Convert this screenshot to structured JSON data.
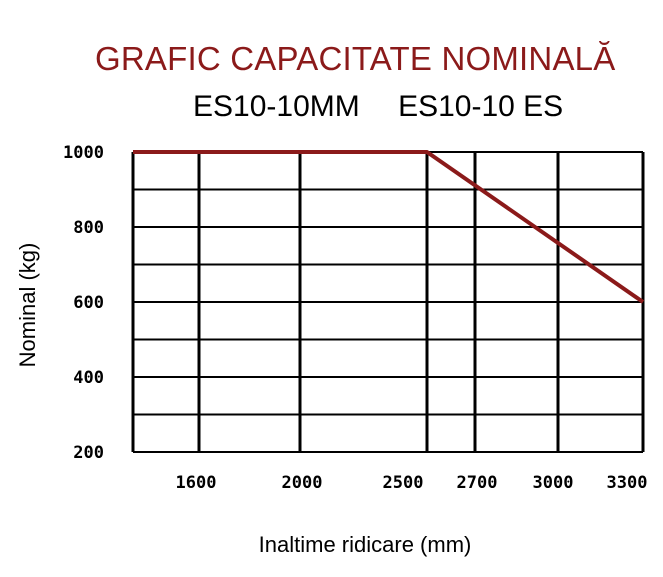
{
  "chart_data": {
    "type": "line",
    "title": "GRAFIC CAPACITATE NOMINALĂ",
    "subtitle": [
      "ES10-10MM",
      "ES10-10 ES"
    ],
    "xlabel": "Inaltime ridicare (mm)",
    "ylabel": "Nominal (kg)",
    "categories": [
      "1600",
      "2000",
      "2500",
      "2700",
      "3000",
      "3300"
    ],
    "y_ticks": [
      "1000",
      "800",
      "600",
      "400",
      "200"
    ],
    "ylim": [
      200,
      1000
    ],
    "grid": true,
    "series": [
      {
        "color": "#8b1a1a",
        "points": [
          {
            "x": 1300,
            "y": 1000
          },
          {
            "x": 2550,
            "y": 1000
          },
          {
            "x": 3300,
            "y": 600
          }
        ]
      }
    ]
  },
  "colors": {
    "title": "#8b1a1a",
    "line": "#8b1a1a",
    "grid": "#000000"
  }
}
